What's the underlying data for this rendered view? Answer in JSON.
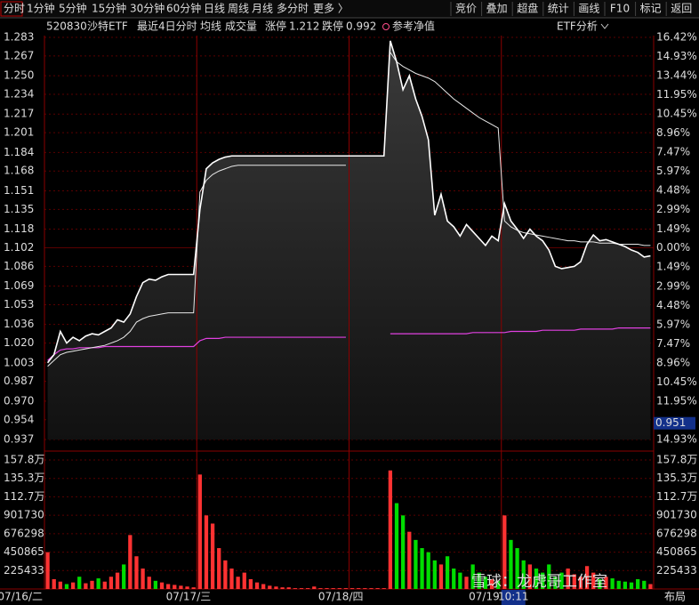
{
  "toolbar": {
    "tabs": [
      "分时",
      "1分钟",
      "5分钟",
      "15分钟",
      "30分钟",
      "60分钟",
      "日线",
      "周线",
      "月线",
      "多分时",
      "更多 〉"
    ],
    "buttons": [
      "竞价",
      "叠加",
      "超盘",
      "统计",
      "画线",
      "F10",
      "标记",
      "返回"
    ]
  },
  "info": {
    "code": "520830",
    "name": "沙特ETF",
    "period": "最近4日分时",
    "avg_label": "均线",
    "volume_label": "成交量",
    "limit_up_label": "涨停",
    "limit_up": 1.212,
    "limit_down_label": "跌停",
    "limit_down": 0.992,
    "nav_label": "参考净值",
    "etf_analysis": "ETF分析"
  },
  "watermark": "雪球：龙虎哥工作室",
  "layout_button": "布局",
  "chart_data": {
    "type": "line",
    "days": [
      "07/16/二",
      "07/17/三",
      "07/18/四",
      "07/19"
    ],
    "ylim": [
      0.937,
      1.283
    ],
    "yticks": [
      1.283,
      1.267,
      {
        "value": 1.25,
        "label": "1.250"
      },
      1.234,
      1.217,
      1.201,
      1.184,
      1.168,
      1.151,
      1.135,
      1.118,
      1.102,
      1.086,
      1.069,
      1.053,
      1.036,
      {
        "value": 1.02,
        "label": "1.020"
      },
      1.003,
      0.987,
      {
        "value": 0.97,
        "label": "0.970"
      },
      0.954,
      0.937
    ],
    "y2lim": [
      -14.93,
      16.42
    ],
    "y2ticks": [
      {
        "value": 16.42,
        "label": "16.42%"
      },
      {
        "value": 14.93,
        "label": "14.93%"
      },
      {
        "value": 13.44,
        "label": "13.44%"
      },
      {
        "value": 11.95,
        "label": "11.95%"
      },
      {
        "value": 10.45,
        "label": "10.45%"
      },
      {
        "value": 8.96,
        "label": "8.96%"
      },
      {
        "value": 7.47,
        "label": "7.47%"
      },
      {
        "value": 5.97,
        "label": "5.97%"
      },
      {
        "value": 4.48,
        "label": "4.48%"
      },
      {
        "value": 2.99,
        "label": "2.99%"
      },
      {
        "value": 1.49,
        "label": "1.49%"
      },
      {
        "value": 0,
        "label": "0.00%"
      },
      {
        "value": -1.49,
        "label": "1.49%"
      },
      {
        "value": -2.99,
        "label": "2.99%"
      },
      {
        "value": -4.48,
        "label": "4.48%"
      },
      {
        "value": -5.97,
        "label": "5.97%"
      },
      {
        "value": -7.47,
        "label": "7.47%"
      },
      {
        "value": -8.96,
        "label": "8.96%"
      },
      {
        "value": -10.45,
        "label": "10.45%"
      },
      {
        "value": -11.95,
        "label": "11.95%"
      },
      {
        "value": -14.93,
        "label": "14.93%"
      }
    ],
    "series": [
      {
        "name": "price",
        "color": "#ffffff",
        "values": [
          1.003,
          1.01,
          1.03,
          1.02,
          1.025,
          1.022,
          1.026,
          1.028,
          1.027,
          1.03,
          1.033,
          1.04,
          1.038,
          1.045,
          1.06,
          1.072,
          1.075,
          1.074,
          1.077,
          1.079,
          1.079,
          1.079,
          1.079,
          1.079,
          1.135,
          1.17,
          1.175,
          1.178,
          1.18,
          1.181,
          1.181,
          1.181,
          1.181,
          1.181,
          1.181,
          1.181,
          1.181,
          1.181,
          1.181,
          1.181,
          1.181,
          1.181,
          1.181,
          1.181,
          1.181,
          1.181,
          1.181,
          1.181,
          1.181,
          1.181,
          1.181,
          1.181,
          1.181,
          1.181,
          1.28,
          1.262,
          1.238,
          1.25,
          1.23,
          1.215,
          1.195,
          1.13,
          1.148,
          1.125,
          1.12,
          1.112,
          1.122,
          1.116,
          1.11,
          1.104,
          1.112,
          1.108,
          1.14,
          1.125,
          1.118,
          1.11,
          1.118,
          1.112,
          1.108,
          1.1,
          1.086,
          1.084,
          1.085,
          1.086,
          1.09,
          1.105,
          1.113,
          1.108,
          1.109,
          1.107,
          1.105,
          1.103,
          1.1,
          1.098,
          1.094,
          1.095
        ]
      },
      {
        "name": "均线",
        "color": "#e8e8e8",
        "values": [
          1.0,
          1.005,
          1.01,
          1.012,
          1.013,
          1.014,
          1.015,
          1.016,
          1.017,
          1.018,
          1.02,
          1.022,
          1.025,
          1.03,
          1.038,
          1.041,
          1.043,
          1.044,
          1.045,
          1.046,
          1.046,
          1.046,
          1.046,
          1.046,
          1.15,
          1.16,
          1.165,
          1.168,
          1.17,
          1.172,
          1.173,
          1.173,
          1.173,
          1.173,
          1.173,
          1.173,
          1.173,
          1.173,
          1.173,
          1.173,
          1.173,
          1.173,
          1.173,
          1.173,
          1.173,
          1.173,
          1.173,
          1.173,
          null,
          null,
          null,
          null,
          null,
          null,
          1.27,
          1.262,
          1.258,
          1.255,
          1.252,
          1.25,
          1.248,
          1.245,
          1.24,
          1.235,
          1.23,
          1.226,
          1.222,
          1.218,
          1.214,
          1.211,
          1.208,
          1.205,
          1.125,
          1.12,
          1.117,
          1.115,
          1.114,
          1.113,
          1.112,
          1.111,
          1.11,
          1.109,
          1.108,
          1.108,
          1.107,
          1.107,
          1.107,
          1.106,
          1.106,
          1.106,
          1.105,
          1.105,
          1.105,
          1.105,
          1.104,
          1.104
        ]
      },
      {
        "name": "参考净值",
        "color": "#e040e0",
        "values": [
          1.005,
          1.01,
          1.014,
          1.015,
          1.015,
          1.016,
          1.016,
          1.016,
          1.016,
          1.017,
          1.017,
          1.017,
          1.017,
          1.017,
          1.017,
          1.017,
          1.017,
          1.017,
          1.017,
          1.017,
          1.017,
          1.017,
          1.017,
          1.017,
          1.022,
          1.024,
          1.024,
          1.024,
          1.025,
          1.025,
          1.025,
          1.025,
          1.025,
          1.025,
          1.025,
          1.025,
          1.025,
          1.025,
          1.025,
          1.025,
          1.025,
          1.025,
          1.025,
          1.025,
          1.025,
          1.025,
          1.025,
          1.025,
          null,
          null,
          null,
          null,
          null,
          null,
          1.028,
          1.028,
          1.028,
          1.028,
          1.028,
          1.028,
          1.028,
          1.028,
          1.028,
          1.028,
          1.028,
          1.028,
          1.028,
          1.029,
          1.029,
          1.029,
          1.029,
          1.029,
          1.029,
          1.03,
          1.03,
          1.03,
          1.03,
          1.03,
          1.031,
          1.031,
          1.031,
          1.031,
          1.031,
          1.031,
          1.032,
          1.032,
          1.032,
          1.032,
          1.032,
          1.032,
          1.033,
          1.033,
          1.033,
          1.033,
          1.033,
          1.033
        ]
      }
    ],
    "volume": {
      "ylim": [
        0,
        1578028
      ],
      "yticks": [
        {
          "value": 1578028,
          "label": "157.8万"
        },
        {
          "value": 1352596,
          "label": "135.3万"
        },
        {
          "value": 1127163,
          "label": "112.7万"
        },
        901730,
        676298,
        450865,
        225433
      ],
      "up_color": "#ff3232",
      "down_color": "#00dd00",
      "values": [
        450000,
        120000,
        90000,
        60000,
        80000,
        150000,
        70000,
        100000,
        130000,
        90000,
        150000,
        200000,
        300000,
        660000,
        400000,
        250000,
        150000,
        100000,
        80000,
        60000,
        50000,
        40000,
        30000,
        20000,
        1400000,
        900000,
        800000,
        500000,
        350000,
        250000,
        150000,
        200000,
        120000,
        80000,
        60000,
        40000,
        30000,
        20000,
        20000,
        10000,
        10000,
        10000,
        30000,
        10000,
        10000,
        10000,
        10000,
        10000,
        10000,
        10000,
        10000,
        10000,
        10000,
        10000,
        1450000,
        1050000,
        900000,
        700000,
        600000,
        500000,
        450000,
        350000,
        300000,
        400000,
        250000,
        200000,
        150000,
        300000,
        200000,
        150000,
        120000,
        100000,
        900000,
        600000,
        500000,
        350000,
        300000,
        250000,
        200000,
        300000,
        150000,
        200000,
        250000,
        180000,
        150000,
        280000,
        200000,
        120000,
        150000,
        130000,
        100000,
        90000,
        80000,
        120000,
        100000,
        60000
      ]
    },
    "cursor": {
      "price": 0.951,
      "time": "10:11"
    }
  }
}
